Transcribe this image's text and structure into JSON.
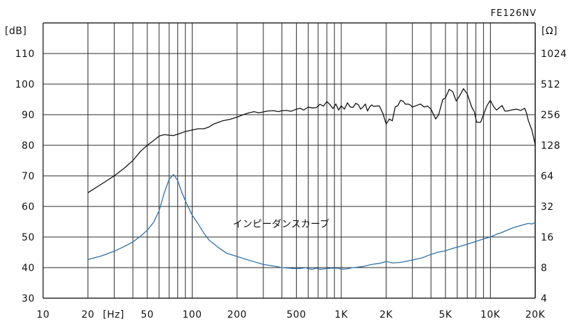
{
  "chart_data": {
    "type": "line",
    "title": "FE126NV",
    "ylabel_left": "[dB]",
    "ylabel_right": "[Ω]",
    "xlabel": "[Hz]",
    "x_scale": "log",
    "xlim": [
      10,
      20000
    ],
    "ylim_left": [
      30,
      120
    ],
    "ylim_right_log2": [
      4,
      2048
    ],
    "grid": true,
    "x_ticks": [
      {
        "value": 10,
        "label": "10"
      },
      {
        "value": 20,
        "label": "20"
      },
      {
        "value": 50,
        "label": "50"
      },
      {
        "value": 100,
        "label": "100"
      },
      {
        "value": 200,
        "label": "200"
      },
      {
        "value": 500,
        "label": "500"
      },
      {
        "value": 1000,
        "label": "1K"
      },
      {
        "value": 2000,
        "label": "2K"
      },
      {
        "value": 5000,
        "label": "5K"
      },
      {
        "value": 10000,
        "label": "10K"
      },
      {
        "value": 20000,
        "label": "20K"
      }
    ],
    "y_ticks_left": [
      "30",
      "40",
      "50",
      "60",
      "70",
      "80",
      "90",
      "100",
      "110"
    ],
    "y_ticks_right": [
      "4",
      "8",
      "16",
      "32",
      "64",
      "128",
      "256",
      "512",
      "1024"
    ],
    "annotation": "インピーダンスカーブ",
    "series": [
      {
        "id": "frequency-response",
        "color": "#111111",
        "axis": "left",
        "points": [
          [
            20,
            64.5
          ],
          [
            25,
            67.5
          ],
          [
            30,
            70
          ],
          [
            35,
            72.5
          ],
          [
            40,
            75
          ],
          [
            45,
            78
          ],
          [
            50,
            80
          ],
          [
            55,
            81.5
          ],
          [
            60,
            83
          ],
          [
            65,
            83.5
          ],
          [
            70,
            83.3
          ],
          [
            75,
            83.2
          ],
          [
            80,
            83.6
          ],
          [
            90,
            84.5
          ],
          [
            100,
            85
          ],
          [
            110,
            85.4
          ],
          [
            120,
            85.4
          ],
          [
            130,
            86
          ],
          [
            140,
            87
          ],
          [
            150,
            87.5
          ],
          [
            160,
            88
          ],
          [
            180,
            88.5
          ],
          [
            200,
            89.2
          ],
          [
            220,
            90
          ],
          [
            240,
            90.6
          ],
          [
            260,
            91
          ],
          [
            280,
            90.6
          ],
          [
            300,
            90.9
          ],
          [
            320,
            91.2
          ],
          [
            350,
            91.3
          ],
          [
            380,
            91
          ],
          [
            400,
            91.3
          ],
          [
            430,
            91.4
          ],
          [
            460,
            91.1
          ],
          [
            500,
            91.8
          ],
          [
            530,
            92.1
          ],
          [
            560,
            91.5
          ],
          [
            600,
            92.5
          ],
          [
            640,
            92.2
          ],
          [
            680,
            92.3
          ],
          [
            720,
            93.4
          ],
          [
            760,
            92.8
          ],
          [
            800,
            94.3
          ],
          [
            840,
            93.3
          ],
          [
            880,
            92
          ],
          [
            920,
            93.5
          ],
          [
            960,
            91.5
          ],
          [
            1000,
            92.9
          ],
          [
            1050,
            91.8
          ],
          [
            1100,
            93.9
          ],
          [
            1150,
            92.5
          ],
          [
            1200,
            92.4
          ],
          [
            1250,
            93.7
          ],
          [
            1300,
            93.3
          ],
          [
            1350,
            91.8
          ],
          [
            1400,
            92.5
          ],
          [
            1450,
            93.5
          ],
          [
            1500,
            91.2
          ],
          [
            1550,
            92.5
          ],
          [
            1600,
            93.2
          ],
          [
            1650,
            92.7
          ],
          [
            1700,
            92.8
          ],
          [
            1800,
            92.9
          ],
          [
            1900,
            90.5
          ],
          [
            2000,
            87
          ],
          [
            2050,
            87.7
          ],
          [
            2100,
            88.6
          ],
          [
            2200,
            88
          ],
          [
            2300,
            92.5
          ],
          [
            2400,
            93
          ],
          [
            2500,
            94.7
          ],
          [
            2600,
            94.4
          ],
          [
            2700,
            93.4
          ],
          [
            2800,
            93.5
          ],
          [
            2900,
            93.2
          ],
          [
            3000,
            92.5
          ],
          [
            3200,
            93
          ],
          [
            3400,
            93.5
          ],
          [
            3600,
            92.5
          ],
          [
            3800,
            92.8
          ],
          [
            4000,
            91.8
          ],
          [
            4300,
            88.6
          ],
          [
            4500,
            90
          ],
          [
            4800,
            95
          ],
          [
            5000,
            95.5
          ],
          [
            5300,
            98.3
          ],
          [
            5600,
            97.5
          ],
          [
            5900,
            94.5
          ],
          [
            6200,
            96
          ],
          [
            6600,
            98.5
          ],
          [
            7000,
            96.8
          ],
          [
            7500,
            92.5
          ],
          [
            7800,
            91
          ],
          [
            8100,
            87.5
          ],
          [
            8600,
            87.5
          ],
          [
            9000,
            90
          ],
          [
            9500,
            93
          ],
          [
            10000,
            94.7
          ],
          [
            10500,
            92.7
          ],
          [
            11000,
            91.5
          ],
          [
            12000,
            93
          ],
          [
            12500,
            91.2
          ],
          [
            13000,
            91.2
          ],
          [
            14000,
            91.6
          ],
          [
            15000,
            91.8
          ],
          [
            16000,
            91.4
          ],
          [
            17000,
            92.1
          ],
          [
            17500,
            90.5
          ],
          [
            18000,
            88
          ],
          [
            19000,
            85
          ],
          [
            20000,
            80.2
          ]
        ]
      },
      {
        "id": "impedance-curve",
        "color": "#2f6fa8",
        "axis": "right",
        "points": [
          [
            20,
            9.6
          ],
          [
            25,
            10.5
          ],
          [
            30,
            11.6
          ],
          [
            35,
            12.9
          ],
          [
            40,
            14.3
          ],
          [
            45,
            16.3
          ],
          [
            50,
            18.7
          ],
          [
            55,
            22.2
          ],
          [
            60,
            29
          ],
          [
            65,
            43.6
          ],
          [
            70,
            59
          ],
          [
            75,
            66
          ],
          [
            80,
            57.5
          ],
          [
            85,
            44.5
          ],
          [
            90,
            36.3
          ],
          [
            100,
            26.3
          ],
          [
            110,
            21.4
          ],
          [
            120,
            17.4
          ],
          [
            130,
            14.9
          ],
          [
            150,
            12.6
          ],
          [
            170,
            11.1
          ],
          [
            200,
            10.3
          ],
          [
            250,
            9.3
          ],
          [
            300,
            8.6
          ],
          [
            350,
            8.3
          ],
          [
            400,
            8
          ],
          [
            450,
            7.9
          ],
          [
            500,
            7.8
          ],
          [
            550,
            7.9
          ],
          [
            580,
            8
          ],
          [
            600,
            7.8
          ],
          [
            640,
            7.7
          ],
          [
            680,
            7.9
          ],
          [
            720,
            7.7
          ],
          [
            780,
            7.8
          ],
          [
            850,
            7.9
          ],
          [
            950,
            7.9
          ],
          [
            1000,
            7.7
          ],
          [
            1100,
            7.8
          ],
          [
            1200,
            8
          ],
          [
            1400,
            8.2
          ],
          [
            1600,
            8.6
          ],
          [
            1800,
            8.8
          ],
          [
            2000,
            9.2
          ],
          [
            2200,
            8.9
          ],
          [
            2500,
            9
          ],
          [
            3000,
            9.5
          ],
          [
            3500,
            10
          ],
          [
            4000,
            10.8
          ],
          [
            4500,
            11.4
          ],
          [
            5000,
            11.7
          ],
          [
            5500,
            12.3
          ],
          [
            6000,
            12.7
          ],
          [
            7000,
            13.6
          ],
          [
            8000,
            14.5
          ],
          [
            9000,
            15.3
          ],
          [
            10000,
            16
          ],
          [
            11000,
            17
          ],
          [
            12000,
            17.8
          ],
          [
            13000,
            18.7
          ],
          [
            14000,
            19.6
          ],
          [
            16000,
            20.8
          ],
          [
            18000,
            21.8
          ],
          [
            19000,
            21.5
          ],
          [
            20000,
            22.3
          ]
        ]
      }
    ]
  }
}
